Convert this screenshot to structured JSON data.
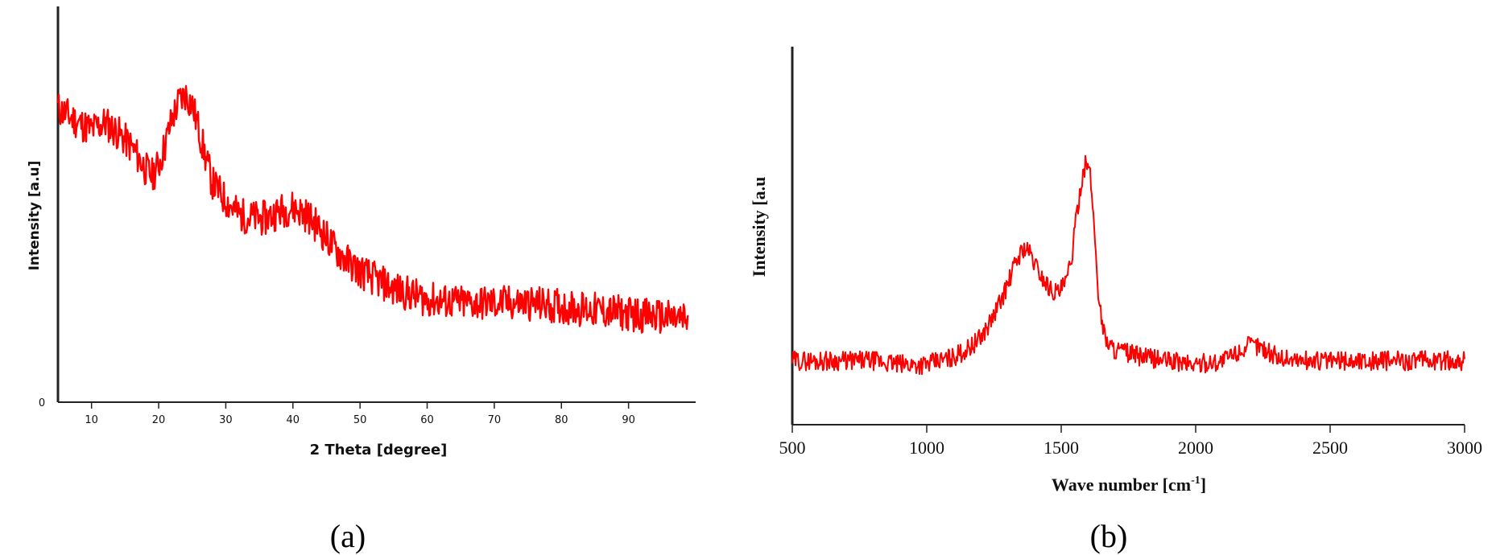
{
  "chart_data": [
    {
      "panel": "a",
      "type": "line",
      "caption": "(a)",
      "xlabel": "2 Theta [degree]",
      "ylabel": "Intensity [a.u]",
      "xlim": [
        5,
        100
      ],
      "ylim": [
        0,
        100
      ],
      "x_ticks": [
        10,
        20,
        30,
        40,
        50,
        60,
        70,
        80,
        90
      ],
      "y_tick_label": "0",
      "grid": false,
      "color": "#ff0000",
      "series": [
        {
          "x": [
            5,
            8,
            10,
            12,
            14,
            16,
            18,
            19,
            20,
            21,
            22,
            23,
            24,
            25,
            26,
            27,
            28,
            30,
            32,
            34,
            36,
            38,
            40,
            42,
            44,
            46,
            48,
            50,
            55,
            60,
            65,
            70,
            75,
            80,
            85,
            90,
            95,
            99
          ],
          "values": [
            83,
            79,
            77,
            79,
            76,
            72,
            66,
            64,
            67,
            73,
            80,
            85,
            87,
            84,
            77,
            69,
            62,
            57,
            53,
            52,
            52,
            54,
            55,
            53,
            49,
            44,
            40,
            37,
            32,
            29,
            28,
            28,
            28,
            27,
            26,
            25,
            24,
            23
          ]
        }
      ]
    },
    {
      "panel": "b",
      "type": "line",
      "caption": "(b)",
      "xlabel": "Wave number [cm",
      "xlabel_sup": "-1",
      "xlabel_end": "]",
      "ylabel": "Intensity [a.u",
      "xlim": [
        500,
        3000
      ],
      "ylim": [
        0,
        100
      ],
      "x_ticks": [
        500,
        1000,
        1500,
        2000,
        2500,
        3000
      ],
      "grid": false,
      "color": "#ff0000",
      "series": [
        {
          "x": [
            500,
            600,
            700,
            800,
            900,
            1000,
            1050,
            1100,
            1150,
            1200,
            1250,
            1300,
            1330,
            1360,
            1380,
            1400,
            1430,
            1460,
            1490,
            1520,
            1540,
            1560,
            1580,
            1595,
            1610,
            1625,
            1640,
            1660,
            1680,
            1700,
            1750,
            1800,
            1900,
            2000,
            2100,
            2150,
            2200,
            2230,
            2260,
            2300,
            2400,
            2500,
            2600,
            2700,
            2800,
            2900,
            3000
          ],
          "values": [
            17,
            17,
            17,
            17,
            16,
            16,
            17,
            18,
            20,
            23,
            29,
            37,
            43,
            47,
            46,
            43,
            39,
            36,
            35,
            38,
            45,
            57,
            67,
            70,
            65,
            50,
            33,
            24,
            21,
            20,
            19,
            18,
            17,
            16,
            17,
            19,
            21,
            21,
            20,
            18,
            17,
            17,
            17,
            17,
            17,
            17,
            17
          ]
        }
      ]
    }
  ]
}
